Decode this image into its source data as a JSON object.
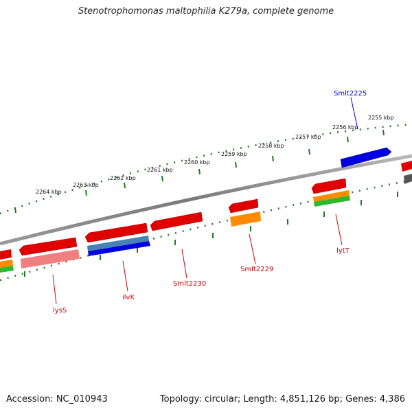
{
  "title": "Stenotrophomonas maltophilia K279a, complete genome",
  "footer": {
    "accession": "Accession: NC_010943",
    "topology": "Topology: circular; Length: 4,851,126 bp; Genes: 4,386"
  },
  "colors": {
    "backbone": "#808080",
    "ruler": "#1e7a1e",
    "cds": "#e00000",
    "gene": "#ff8c00",
    "rna": "#2db82d",
    "pseudo_cds": "#f08080",
    "selected_cds": "#0000e0",
    "selected_gene": "#4682b4",
    "other": "#555555",
    "label_red": "#cc0000",
    "label_blue": "#0000cc"
  },
  "kbp_ticks": [
    "2255 kbp",
    "2256 kbp",
    "2257 kbp",
    "2258 kbp",
    "2259 kbp",
    "2260 kbp",
    "2261 kbp",
    "2262 kbp",
    "2263 kbp",
    "2264 kbp"
  ],
  "gene_labels": [
    "Smlt2225",
    "lytT",
    "Smlt2229",
    "Smlt2230",
    "ilvK",
    "lysS"
  ]
}
